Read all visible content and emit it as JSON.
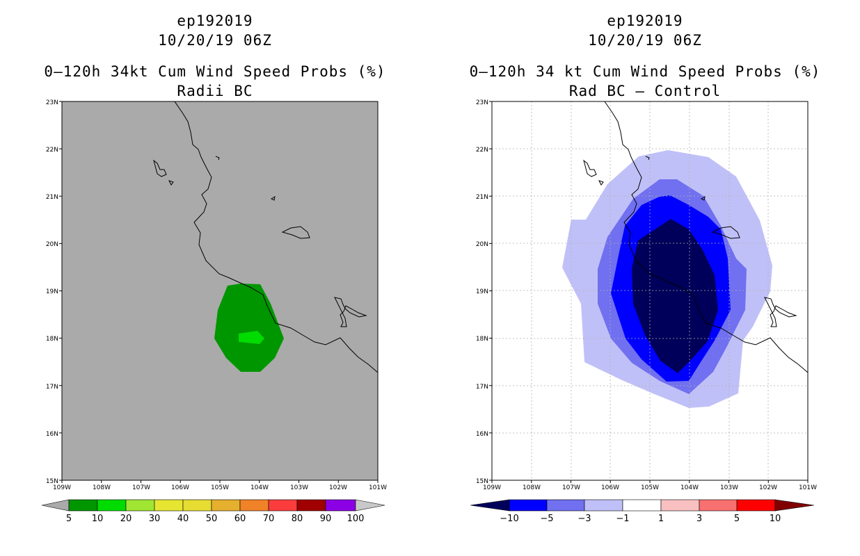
{
  "panels": [
    {
      "title1": "ep192019",
      "title2": "10/20/19 06Z",
      "title3": "0–120h 34kt Cum Wind Speed Probs (%)",
      "title4": "Radii BC",
      "lat_labels": [
        "23N",
        "22N",
        "21N",
        "20N",
        "19N",
        "18N",
        "17N",
        "16N",
        "15N"
      ],
      "lon_labels": [
        "109W",
        "108W",
        "107W",
        "106W",
        "105W",
        "104W",
        "103W",
        "102W",
        "101W"
      ],
      "colorbar": {
        "labels": [
          "5",
          "10",
          "20",
          "30",
          "40",
          "50",
          "60",
          "70",
          "80",
          "90",
          "100"
        ],
        "colors": [
          "#009600",
          "#00dc00",
          "#a0e632",
          "#e6e632",
          "#e6dc32",
          "#e6af2d",
          "#f08228",
          "#fa3c3c",
          "#a00000",
          "#8c00e6",
          "#c8c8c8"
        ]
      }
    },
    {
      "title1": "ep192019",
      "title2": "10/20/19 06Z",
      "title3": "0–120h 34 kt Cum Wind Speed Probs (%)",
      "title4": "Rad BC – Control",
      "lat_labels": [
        "23N",
        "22N",
        "21N",
        "20N",
        "19N",
        "18N",
        "17N",
        "16N",
        "15N"
      ],
      "lon_labels": [
        "109W",
        "108W",
        "107W",
        "106W",
        "105W",
        "104W",
        "103W",
        "102W",
        "101W"
      ],
      "colorbar": {
        "labels": [
          "−10",
          "−5",
          "−3",
          "−1",
          "1",
          "3",
          "5",
          "10"
        ],
        "colors": [
          "#00005a",
          "#0000ff",
          "#7070f0",
          "#c0c0f8",
          "#ffffff",
          "#f8c0c0",
          "#f87070",
          "#ff0000",
          "#800000"
        ]
      }
    }
  ]
}
